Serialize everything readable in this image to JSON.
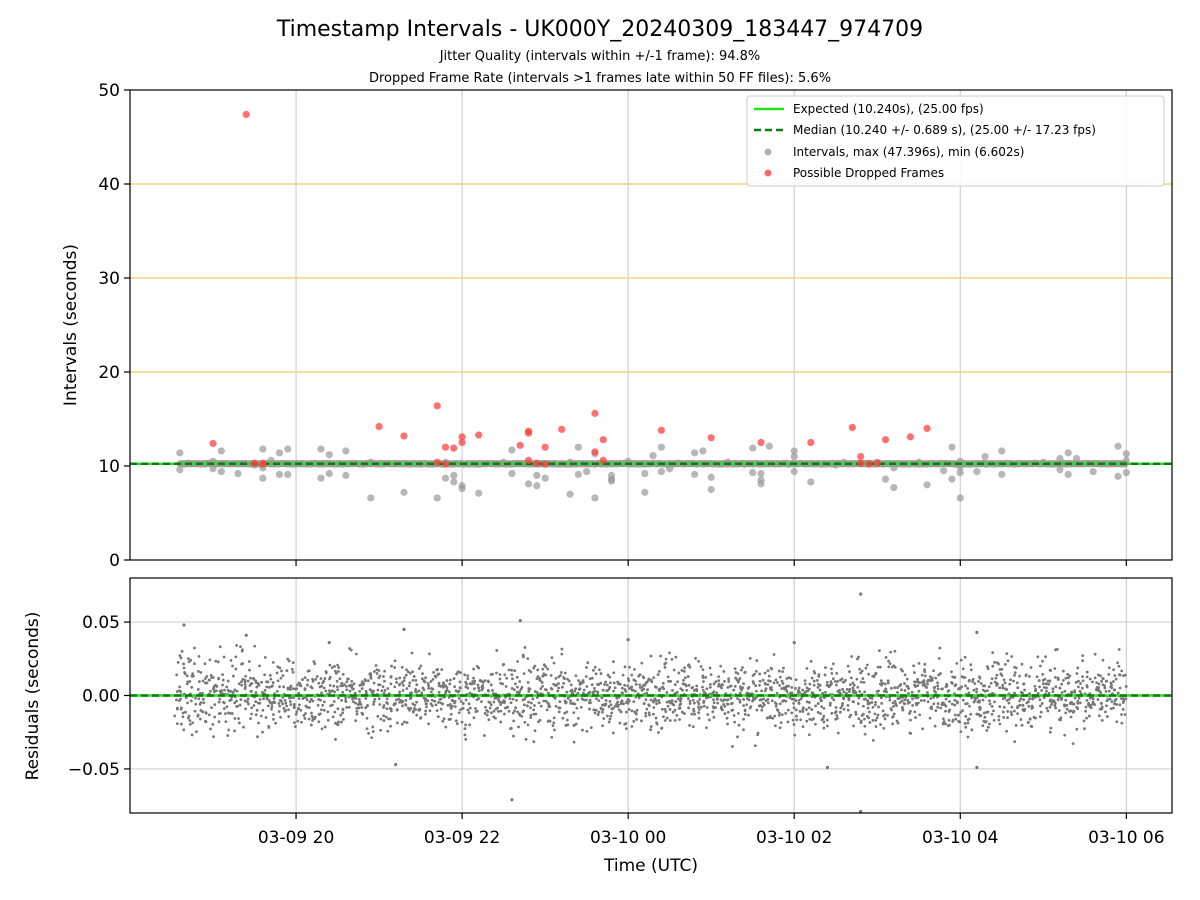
{
  "figure": {
    "title": "Timestamp Intervals - UK000Y_20240309_183447_974709",
    "subtitle1": "Jitter Quality (intervals within +/-1 frame): 94.8%",
    "subtitle2": "Dropped Frame Rate (intervals >1 frames late within 50 FF files): 5.6%"
  },
  "chart_data": [
    {
      "type": "scatter",
      "panel": "top",
      "ylabel": "Intervals (seconds)",
      "xlabel": "",
      "ylim": [
        0,
        50
      ],
      "yticks": [
        "0",
        "10",
        "20",
        "30",
        "40",
        "50"
      ],
      "xlim_hours": [
        18.0,
        30.55
      ],
      "xticks": [
        {
          "hours": 20,
          "label": "03-09 20"
        },
        {
          "hours": 22,
          "label": "03-09 22"
        },
        {
          "hours": 24,
          "label": "03-10 00"
        },
        {
          "hours": 26,
          "label": "03-10 02"
        },
        {
          "hours": 28,
          "label": "03-10 04"
        },
        {
          "hours": 30,
          "label": "03-10 06"
        }
      ],
      "grid": true,
      "reference_lines": {
        "values": [
          20,
          30,
          40
        ],
        "color": "#f5d27a"
      },
      "legend": {
        "placement": "top-right",
        "entries": [
          {
            "label": "Expected (10.240s), (25.00 fps)",
            "style": "line",
            "color": "#22e022"
          },
          {
            "label": "Median (10.240 +/- 0.689 s), (25.00 +/- 17.23 fps)",
            "style": "dashed",
            "color": "#0f7a0f"
          },
          {
            "label": "Intervals, max (47.396s), min (6.602s)",
            "style": "dot",
            "color": "#999999"
          },
          {
            "label": "Possible Dropped Frames",
            "style": "dot",
            "color": "#ff4040"
          }
        ]
      },
      "expected": 10.24,
      "median": 10.24,
      "series": [
        {
          "name": "Intervals, max (47.396s), min (6.602s)",
          "color": "#999999",
          "baseline_range_hours": [
            18.6,
            30.0
          ],
          "baseline_value": 10.24,
          "outliers": [
            [
              18.6,
              11.4
            ],
            [
              18.6,
              9.6
            ],
            [
              18.7,
              10.3
            ],
            [
              18.9,
              10.2
            ],
            [
              19.0,
              9.7
            ],
            [
              19.0,
              10.5
            ],
            [
              19.1,
              11.6
            ],
            [
              19.1,
              9.4
            ],
            [
              19.3,
              9.2
            ],
            [
              19.5,
              10.1
            ],
            [
              19.6,
              8.7
            ],
            [
              19.6,
              11.8
            ],
            [
              19.6,
              9.8
            ],
            [
              19.7,
              10.6
            ],
            [
              19.8,
              11.4
            ],
            [
              19.8,
              9.1
            ],
            [
              19.9,
              11.8
            ],
            [
              19.9,
              9.1
            ],
            [
              20.3,
              11.8
            ],
            [
              20.3,
              8.7
            ],
            [
              20.4,
              9.2
            ],
            [
              20.4,
              11.2
            ],
            [
              20.6,
              9.0
            ],
            [
              20.6,
              11.6
            ],
            [
              20.9,
              10.4
            ],
            [
              20.9,
              6.6
            ],
            [
              21.3,
              7.2
            ],
            [
              21.5,
              10.2
            ],
            [
              21.7,
              6.6
            ],
            [
              21.8,
              10.4
            ],
            [
              21.8,
              8.7
            ],
            [
              21.9,
              9.0
            ],
            [
              21.9,
              8.3
            ],
            [
              22.0,
              7.9
            ],
            [
              22.0,
              7.6
            ],
            [
              22.2,
              10.2
            ],
            [
              22.2,
              7.1
            ],
            [
              22.5,
              10.4
            ],
            [
              22.6,
              9.2
            ],
            [
              22.6,
              11.7
            ],
            [
              22.8,
              8.1
            ],
            [
              22.9,
              7.9
            ],
            [
              22.9,
              9.0
            ],
            [
              23.0,
              8.7
            ],
            [
              23.3,
              10.4
            ],
            [
              23.3,
              7.0
            ],
            [
              23.4,
              9.1
            ],
            [
              23.4,
              12.0
            ],
            [
              23.5,
              9.4
            ],
            [
              23.6,
              11.3
            ],
            [
              23.6,
              6.6
            ],
            [
              23.8,
              8.6
            ],
            [
              23.8,
              9.0
            ],
            [
              23.8,
              8.4
            ],
            [
              24.0,
              10.5
            ],
            [
              24.2,
              10.2
            ],
            [
              24.2,
              7.2
            ],
            [
              24.2,
              9.2
            ],
            [
              24.3,
              11.1
            ],
            [
              24.4,
              9.4
            ],
            [
              24.4,
              12.0
            ],
            [
              24.5,
              9.7
            ],
            [
              24.6,
              10.3
            ],
            [
              24.8,
              11.4
            ],
            [
              24.8,
              9.1
            ],
            [
              24.9,
              11.6
            ],
            [
              25.0,
              8.8
            ],
            [
              25.0,
              7.5
            ],
            [
              25.2,
              10.4
            ],
            [
              25.4,
              10.2
            ],
            [
              25.5,
              11.9
            ],
            [
              25.5,
              9.3
            ],
            [
              25.6,
              8.5
            ],
            [
              25.6,
              8.1
            ],
            [
              25.6,
              9.2
            ],
            [
              25.7,
              12.1
            ],
            [
              25.9,
              10.3
            ],
            [
              26.0,
              9.4
            ],
            [
              26.0,
              11.6
            ],
            [
              26.0,
              11.0
            ],
            [
              26.2,
              8.3
            ],
            [
              26.5,
              10.1
            ],
            [
              26.6,
              10.4
            ],
            [
              26.9,
              10.3
            ],
            [
              27.0,
              10.4
            ],
            [
              27.1,
              8.6
            ],
            [
              27.2,
              7.7
            ],
            [
              27.2,
              9.8
            ],
            [
              27.5,
              10.4
            ],
            [
              27.6,
              8.0
            ],
            [
              27.8,
              9.5
            ],
            [
              27.9,
              8.6
            ],
            [
              27.9,
              12.0
            ],
            [
              28.0,
              6.6
            ],
            [
              28.0,
              9.3
            ],
            [
              28.0,
              10.5
            ],
            [
              28.0,
              9.9
            ],
            [
              28.2,
              9.4
            ],
            [
              28.3,
              11.0
            ],
            [
              28.5,
              9.1
            ],
            [
              28.5,
              11.6
            ],
            [
              28.9,
              10.3
            ],
            [
              29.0,
              10.4
            ],
            [
              29.2,
              9.6
            ],
            [
              29.2,
              10.8
            ],
            [
              29.3,
              11.4
            ],
            [
              29.3,
              9.1
            ],
            [
              29.4,
              10.8
            ],
            [
              29.6,
              9.4
            ],
            [
              29.9,
              8.9
            ],
            [
              29.9,
              12.1
            ],
            [
              30.0,
              10.6
            ],
            [
              30.0,
              9.3
            ],
            [
              30.0,
              11.3
            ]
          ]
        },
        {
          "name": "Possible Dropped Frames",
          "color": "#ff4040",
          "points": [
            [
              19.4,
              47.4
            ],
            [
              19.0,
              12.4
            ],
            [
              19.5,
              10.3
            ],
            [
              19.6,
              10.2
            ],
            [
              19.6,
              10.3
            ],
            [
              21.0,
              14.2
            ],
            [
              21.3,
              13.2
            ],
            [
              21.7,
              16.4
            ],
            [
              21.7,
              10.4
            ],
            [
              21.8,
              10.2
            ],
            [
              21.8,
              12.0
            ],
            [
              21.9,
              11.9
            ],
            [
              22.0,
              12.5
            ],
            [
              22.0,
              13.1
            ],
            [
              22.2,
              13.3
            ],
            [
              22.7,
              12.2
            ],
            [
              22.8,
              13.7
            ],
            [
              22.8,
              13.5
            ],
            [
              22.8,
              10.6
            ],
            [
              22.9,
              10.3
            ],
            [
              23.0,
              10.2
            ],
            [
              23.0,
              12.0
            ],
            [
              23.2,
              13.9
            ],
            [
              23.6,
              15.6
            ],
            [
              23.6,
              11.5
            ],
            [
              23.7,
              12.8
            ],
            [
              23.7,
              10.6
            ],
            [
              24.4,
              13.8
            ],
            [
              25.0,
              13.0
            ],
            [
              25.6,
              12.5
            ],
            [
              26.2,
              12.5
            ],
            [
              26.7,
              14.1
            ],
            [
              26.8,
              11.0
            ],
            [
              26.8,
              10.3
            ],
            [
              26.9,
              10.2
            ],
            [
              27.0,
              10.3
            ],
            [
              27.1,
              12.8
            ],
            [
              27.4,
              13.1
            ],
            [
              27.6,
              14.0
            ]
          ]
        }
      ]
    },
    {
      "type": "scatter",
      "panel": "bottom",
      "ylabel": "Residuals (seconds)",
      "xlabel": "Time (UTC)",
      "ylim": [
        -0.08,
        0.08
      ],
      "yticks": [
        "−0.05",
        "0.00",
        "0.05"
      ],
      "grid": true,
      "zero_line": {
        "value": 0,
        "colors": [
          "#22e022",
          "#0f7a0f"
        ]
      },
      "series": [
        {
          "name": "",
          "color": "#777777",
          "count": 2600,
          "spread_typical": 0.015,
          "extremes": [
            [
              18.65,
              0.048
            ],
            [
              19.4,
              0.041
            ],
            [
              21.3,
              0.045
            ],
            [
              22.7,
              0.051
            ],
            [
              26.8,
              0.069
            ],
            [
              26.8,
              -0.079
            ],
            [
              26.4,
              -0.049
            ],
            [
              22.6,
              -0.071
            ],
            [
              21.2,
              -0.047
            ],
            [
              28.2,
              -0.049
            ],
            [
              28.2,
              0.043
            ],
            [
              20.4,
              0.036
            ],
            [
              24.0,
              0.038
            ],
            [
              26.0,
              0.036
            ]
          ]
        }
      ]
    }
  ]
}
